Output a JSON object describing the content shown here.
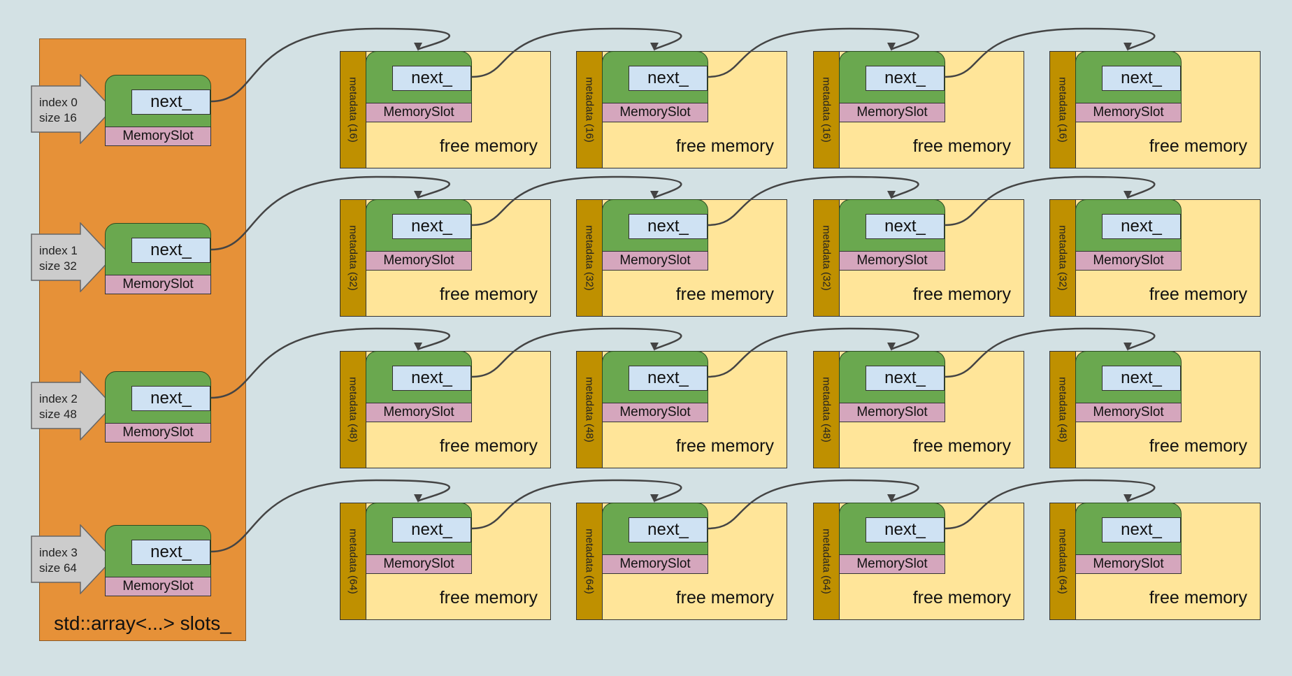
{
  "slots_panel": {
    "caption": "std::array<...> slots_"
  },
  "slot_field_label": "next_",
  "slot_type_label": "MemorySlot",
  "free_memory_label": "free memory",
  "rows": [
    {
      "index_label": "index 0",
      "size_label": "size 16",
      "metadata_label": "metadata (16)",
      "block_count": 4
    },
    {
      "index_label": "index 1",
      "size_label": "size 32",
      "metadata_label": "metadata (32)",
      "block_count": 4
    },
    {
      "index_label": "index 2",
      "size_label": "size 48",
      "metadata_label": "metadata (48)",
      "block_count": 4
    },
    {
      "index_label": "index 3",
      "size_label": "size 64",
      "metadata_label": "metadata (64)",
      "block_count": 4
    }
  ],
  "colors": {
    "background": "#d3e1e4",
    "panel": "#e69138",
    "slot_body": "#6aa84f",
    "next_field": "#cfe2f3",
    "slot_type": "#d5a6bd",
    "block": "#ffe599",
    "metadata": "#bf9000",
    "index_arrow": "#cccccc",
    "link": "#444444"
  }
}
